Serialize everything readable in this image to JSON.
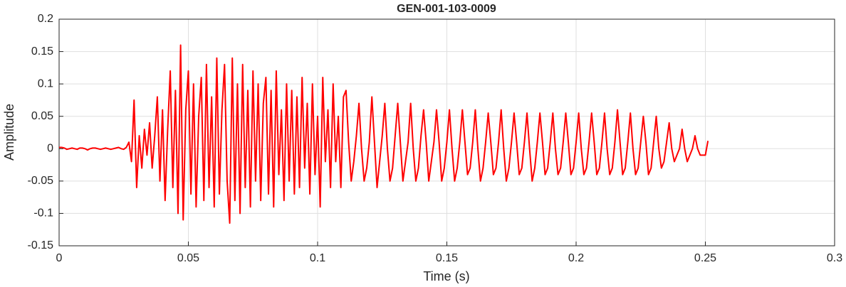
{
  "chart_data": {
    "type": "line",
    "title": "GEN-001-103-0009",
    "xlabel": "Time (s)",
    "ylabel": "Amplitude",
    "xlim": [
      0,
      0.3
    ],
    "xticks": [
      0,
      0.05,
      0.1,
      0.15,
      0.2,
      0.25,
      0.3
    ],
    "ylim": [
      -0.15,
      0.2
    ],
    "yticks": [
      -0.15,
      -0.1,
      -0.05,
      0,
      0.05,
      0.1,
      0.15,
      0.2
    ],
    "grid": true,
    "series": [
      {
        "color": "#ff0000",
        "x": [
          0,
          0.001,
          0.002,
          0.003,
          0.004,
          0.005,
          0.006,
          0.007,
          0.008,
          0.009,
          0.01,
          0.011,
          0.012,
          0.013,
          0.014,
          0.015,
          0.016,
          0.017,
          0.018,
          0.019,
          0.02,
          0.021,
          0.022,
          0.023,
          0.024,
          0.025,
          0.026,
          0.027,
          0.028,
          0.029,
          0.03,
          0.031,
          0.032,
          0.033,
          0.034,
          0.035,
          0.036,
          0.037,
          0.038,
          0.039,
          0.04,
          0.041,
          0.042,
          0.043,
          0.044,
          0.045,
          0.046,
          0.047,
          0.048,
          0.049,
          0.05,
          0.051,
          0.052,
          0.053,
          0.054,
          0.055,
          0.056,
          0.057,
          0.058,
          0.059,
          0.06,
          0.061,
          0.062,
          0.063,
          0.064,
          0.065,
          0.066,
          0.067,
          0.068,
          0.069,
          0.07,
          0.071,
          0.072,
          0.073,
          0.074,
          0.075,
          0.076,
          0.077,
          0.078,
          0.079,
          0.08,
          0.081,
          0.082,
          0.083,
          0.084,
          0.085,
          0.086,
          0.087,
          0.088,
          0.089,
          0.09,
          0.091,
          0.092,
          0.093,
          0.094,
          0.095,
          0.096,
          0.097,
          0.098,
          0.099,
          0.1,
          0.101,
          0.102,
          0.103,
          0.104,
          0.105,
          0.106,
          0.107,
          0.108,
          0.109,
          0.11,
          0.111,
          0.112,
          0.113,
          0.114,
          0.115,
          0.116,
          0.117,
          0.118,
          0.119,
          0.12,
          0.121,
          0.122,
          0.123,
          0.124,
          0.125,
          0.126,
          0.127,
          0.128,
          0.129,
          0.13,
          0.131,
          0.132,
          0.133,
          0.134,
          0.135,
          0.136,
          0.137,
          0.138,
          0.139,
          0.14,
          0.141,
          0.142,
          0.143,
          0.144,
          0.145,
          0.146,
          0.147,
          0.148,
          0.149,
          0.15,
          0.151,
          0.152,
          0.153,
          0.154,
          0.155,
          0.156,
          0.157,
          0.158,
          0.159,
          0.16,
          0.161,
          0.162,
          0.163,
          0.164,
          0.165,
          0.166,
          0.167,
          0.168,
          0.169,
          0.17,
          0.171,
          0.172,
          0.173,
          0.174,
          0.175,
          0.176,
          0.177,
          0.178,
          0.179,
          0.18,
          0.181,
          0.182,
          0.183,
          0.184,
          0.185,
          0.186,
          0.187,
          0.188,
          0.189,
          0.19,
          0.191,
          0.192,
          0.193,
          0.194,
          0.195,
          0.196,
          0.197,
          0.198,
          0.199,
          0.2,
          0.201,
          0.202,
          0.203,
          0.204,
          0.205,
          0.206,
          0.207,
          0.208,
          0.209,
          0.21,
          0.211,
          0.212,
          0.213,
          0.214,
          0.215,
          0.216,
          0.217,
          0.218,
          0.219,
          0.22,
          0.221,
          0.222,
          0.223,
          0.224,
          0.225,
          0.226,
          0.227,
          0.228,
          0.229,
          0.23,
          0.231,
          0.232,
          0.233,
          0.234,
          0.235,
          0.236,
          0.237,
          0.238,
          0.239,
          0.24,
          0.241,
          0.242,
          0.243,
          0.244,
          0.245,
          0.246,
          0.247,
          0.248,
          0.249,
          0.25,
          0.251
        ],
        "values": [
          0.002,
          0.002,
          0.001,
          -0.001,
          0,
          0.001,
          0,
          -0.001,
          0.001,
          0.001,
          0,
          -0.002,
          0,
          0.001,
          0.001,
          0,
          -0.001,
          0,
          0.001,
          0,
          -0.001,
          0,
          0.001,
          0.002,
          0,
          -0.001,
          0.002,
          0.01,
          -0.02,
          0.075,
          -0.06,
          0.02,
          -0.03,
          0.03,
          -0.01,
          0.04,
          -0.03,
          0.02,
          0.08,
          -0.05,
          0.06,
          -0.08,
          0.03,
          0.12,
          -0.06,
          0.09,
          -0.1,
          0.16,
          -0.11,
          0.06,
          0.12,
          -0.07,
          0.1,
          -0.09,
          0.05,
          0.11,
          -0.08,
          0.13,
          -0.06,
          0.08,
          -0.09,
          0.14,
          -0.07,
          0.06,
          0.13,
          -0.05,
          -0.115,
          0.14,
          -0.08,
          0.1,
          -0.1,
          0.13,
          -0.06,
          0.09,
          -0.09,
          0.12,
          -0.05,
          0.1,
          -0.08,
          0.07,
          0.11,
          -0.07,
          0.09,
          -0.09,
          0.12,
          -0.04,
          0.06,
          -0.08,
          0.1,
          -0.05,
          0.09,
          -0.07,
          0.08,
          -0.06,
          0.11,
          -0.03,
          0.07,
          -0.07,
          0.1,
          -0.04,
          0.05,
          -0.09,
          0.11,
          -0.02,
          0.06,
          -0.06,
          0.1,
          -0.02,
          0.05,
          -0.06,
          0.08,
          0.09,
          0.01,
          -0.05,
          -0.02,
          0.02,
          0.07,
          0,
          -0.05,
          -0.03,
          0.01,
          0.08,
          0.01,
          -0.06,
          -0.02,
          0.02,
          0.07,
          0,
          -0.05,
          -0.03,
          0.02,
          0.07,
          0.01,
          -0.05,
          -0.02,
          0.01,
          0.07,
          0,
          -0.05,
          -0.03,
          0.02,
          0.06,
          0.01,
          -0.05,
          -0.02,
          0.01,
          0.06,
          0.01,
          -0.05,
          -0.03,
          0.01,
          0.06,
          0,
          -0.05,
          -0.03,
          0.01,
          0.06,
          0.01,
          -0.04,
          -0.03,
          0.01,
          0.06,
          0,
          -0.05,
          -0.03,
          0.01,
          0.055,
          0.01,
          -0.04,
          -0.03,
          0.01,
          0.06,
          0,
          -0.05,
          -0.03,
          0.01,
          0.055,
          0.01,
          -0.04,
          -0.03,
          0.01,
          0.055,
          0,
          -0.05,
          -0.03,
          0.01,
          0.055,
          0.01,
          -0.04,
          -0.03,
          0.01,
          0.055,
          0,
          -0.04,
          -0.03,
          0.01,
          0.055,
          0.01,
          -0.04,
          -0.03,
          0.01,
          0.055,
          0,
          -0.04,
          -0.03,
          0.01,
          0.055,
          0.01,
          -0.04,
          -0.03,
          0.01,
          0.055,
          0,
          -0.04,
          -0.03,
          0.01,
          0.06,
          0.01,
          -0.04,
          -0.03,
          0.01,
          0.055,
          0,
          -0.04,
          -0.03,
          0.01,
          0.05,
          0.01,
          -0.04,
          -0.03,
          0.01,
          0.05,
          0,
          -0.03,
          -0.02,
          0.01,
          0.04,
          0,
          -0.02,
          -0.01,
          0,
          0.03,
          0,
          -0.02,
          -0.01,
          0,
          0.02,
          0,
          -0.01,
          -0.01,
          -0.01,
          0.012
        ]
      }
    ]
  }
}
